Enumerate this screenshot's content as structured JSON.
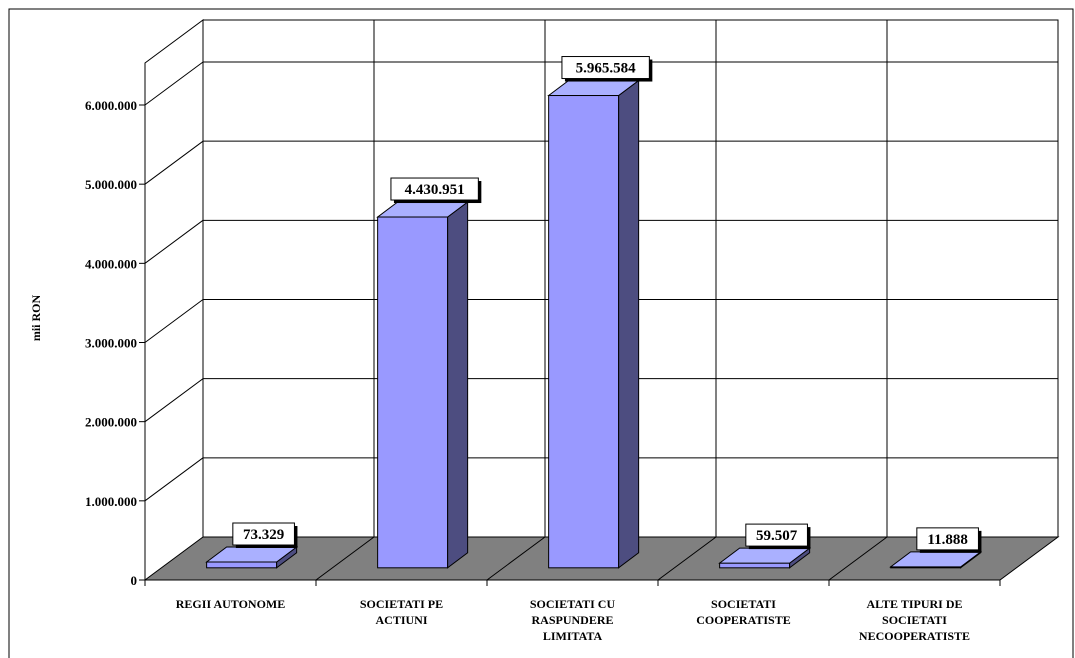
{
  "chart_data": {
    "type": "bar",
    "three_d": true,
    "ylabel": "mii RON",
    "xlabel": "",
    "title": "",
    "ylim": [
      0,
      6000000
    ],
    "yticks": [
      0,
      1000000,
      2000000,
      3000000,
      4000000,
      5000000,
      6000000
    ],
    "ytick_labels": [
      "0",
      "1.000.000",
      "2.000.000",
      "3.000.000",
      "4.000.000",
      "5.000.000",
      "6.000.000"
    ],
    "categories": [
      [
        "REGII AUTONOME"
      ],
      [
        "SOCIETATI PE",
        "ACTIUNI"
      ],
      [
        "SOCIETATI CU",
        "RASPUNDERE",
        "LIMITATA"
      ],
      [
        "SOCIETATI",
        "COOPERATISTE"
      ],
      [
        "ALTE TIPURI DE",
        "SOCIETATI",
        "NECOOPERATISTE"
      ]
    ],
    "values": [
      73329,
      4430951,
      5965584,
      59507,
      11888
    ],
    "value_labels": [
      "73.329",
      "4.430.951",
      "5.965.584",
      "59.507",
      "11.888"
    ],
    "grid": true,
    "legend": "none",
    "colors": {
      "bar_front": "#9999ff",
      "bar_top": "#aab0ff",
      "bar_side": "#4d4d80",
      "floor": "#808080",
      "grid": "#000000"
    }
  }
}
